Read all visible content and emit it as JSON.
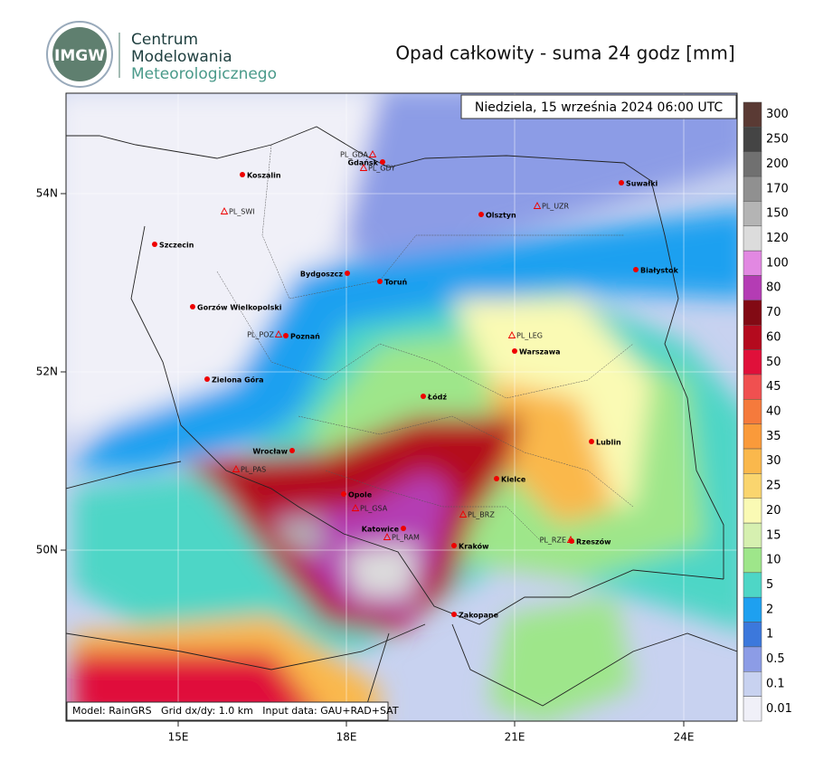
{
  "header": {
    "logo_text": "IMGW",
    "org_line1": "Centrum",
    "org_line2": "Modelowania",
    "org_line3": "Meteorologicznego",
    "title": "Opad całkowity - suma 24 godz [mm]"
  },
  "map": {
    "date": "Niedziela, 15 września 2024 06:00 UTC",
    "footer": "Model: RainGRS   Grid dx/dy: 1.0 km   Input data: GAU+RAD+SAT",
    "lon_labels": [
      "15E",
      "18E",
      "21E",
      "24E"
    ],
    "lat_labels": [
      "54N",
      "52N",
      "50N"
    ],
    "cities": [
      "Gdańsk",
      "Koszalin",
      "Suwałki",
      "Olsztyn",
      "Szczecin",
      "Bydgoszcz",
      "Toruń",
      "Białystok",
      "Gorzów Wielkopolski",
      "Poznań",
      "Warszawa",
      "Zielona Góra",
      "Łódź",
      "Lublin",
      "Wrocław",
      "Kielce",
      "Opole",
      "Katowice",
      "Kraków",
      "Rzeszów",
      "Zakopane"
    ],
    "stations": [
      "PL_GDA",
      "PL_GDY",
      "PL_SWI",
      "PL_UZR",
      "PL_LEG",
      "PL_POZ",
      "PL_PAS",
      "PL_GSA",
      "PL_BRZ",
      "PL_RAM",
      "PL_RZE"
    ]
  },
  "colorbar": [
    {
      "label": "300",
      "color": "#5a3a34"
    },
    {
      "label": "250",
      "color": "#444444"
    },
    {
      "label": "200",
      "color": "#707070"
    },
    {
      "label": "170",
      "color": "#909090"
    },
    {
      "label": "150",
      "color": "#b4b4b4"
    },
    {
      "label": "120",
      "color": "#dcdcdc"
    },
    {
      "label": "100",
      "color": "#e288e2"
    },
    {
      "label": "80",
      "color": "#b43cb4"
    },
    {
      "label": "70",
      "color": "#820a14"
    },
    {
      "label": "60",
      "color": "#b40a1e"
    },
    {
      "label": "50",
      "color": "#e0103a"
    },
    {
      "label": "45",
      "color": "#f05050"
    },
    {
      "label": "40",
      "color": "#f57a3c"
    },
    {
      "label": "35",
      "color": "#fa9a3a"
    },
    {
      "label": "30",
      "color": "#fab84c"
    },
    {
      "label": "25",
      "color": "#fad56e"
    },
    {
      "label": "20",
      "color": "#fafab4"
    },
    {
      "label": "15",
      "color": "#d6f0b0"
    },
    {
      "label": "10",
      "color": "#9ee68a"
    },
    {
      "label": "5",
      "color": "#4ed6c6"
    },
    {
      "label": "2",
      "color": "#1ea0f0"
    },
    {
      "label": "1",
      "color": "#3c78dc"
    },
    {
      "label": "0.5",
      "color": "#8c9ce6"
    },
    {
      "label": "0.1",
      "color": "#c8d2f0"
    },
    {
      "label": "0.01",
      "color": "#f0f0f8"
    }
  ]
}
